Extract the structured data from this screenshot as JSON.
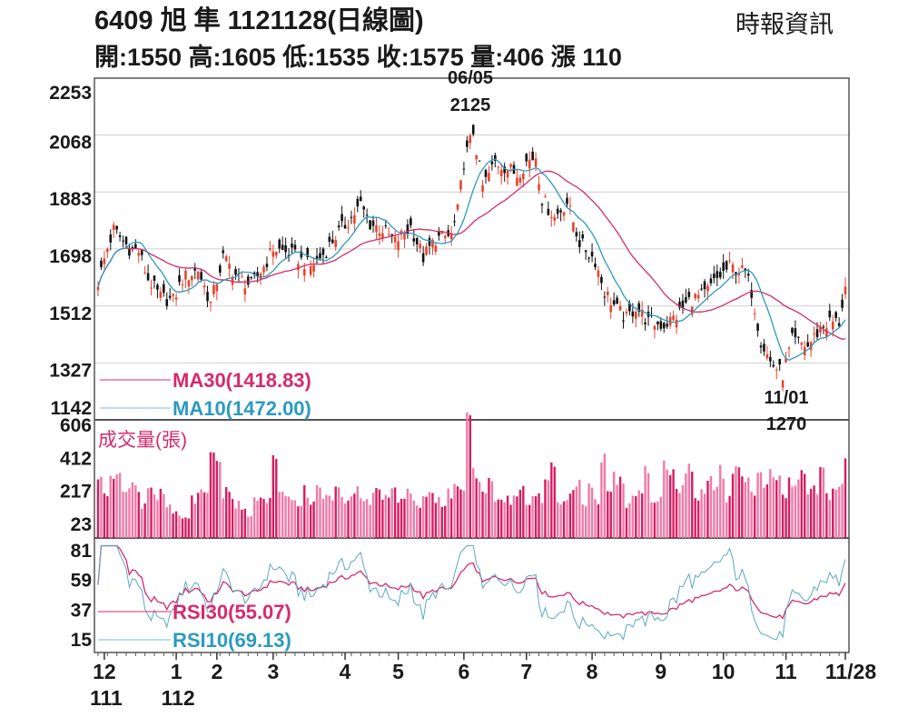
{
  "header": {
    "title": "6409  旭  隼 1121128(日線圖)",
    "source": "時報資訊",
    "ohlc_line": "開:1550 高:1605 低:1535 收:1575 量:406 漲 110"
  },
  "colors": {
    "ma30": "#d62a6c",
    "ma10": "#2a9bc0",
    "up": "#e8432c",
    "down": "#111111",
    "vol_dark": "#d81b60",
    "vol_light": "#f27aa6",
    "grid": "#cfcfcf"
  },
  "chart_data": [
    {
      "type": "candlestick",
      "title": "6409 旭隼 日線圖",
      "yticks": [
        "2253",
        "2068",
        "1883",
        "1698",
        "1512",
        "1327",
        "1142"
      ],
      "ylim": [
        1142,
        2253
      ],
      "trading_days": 240,
      "close_samples_day_price": [
        [
          0,
          1590
        ],
        [
          3,
          1700
        ],
        [
          5,
          1760
        ],
        [
          10,
          1700
        ],
        [
          13,
          1690
        ],
        [
          16,
          1600
        ],
        [
          20,
          1540
        ],
        [
          24,
          1530
        ],
        [
          27,
          1600
        ],
        [
          32,
          1630
        ],
        [
          36,
          1520
        ],
        [
          40,
          1670
        ],
        [
          45,
          1600
        ],
        [
          49,
          1580
        ],
        [
          53,
          1640
        ],
        [
          56,
          1700
        ],
        [
          62,
          1680
        ],
        [
          68,
          1640
        ],
        [
          72,
          1680
        ],
        [
          76,
          1740
        ],
        [
          81,
          1800
        ],
        [
          84,
          1840
        ],
        [
          87,
          1780
        ],
        [
          91,
          1760
        ],
        [
          95,
          1720
        ],
        [
          100,
          1770
        ],
        [
          104,
          1670
        ],
        [
          108,
          1730
        ],
        [
          113,
          1740
        ],
        [
          115,
          1820
        ],
        [
          117,
          1980
        ],
        [
          120,
          2080
        ],
        [
          123,
          1900
        ],
        [
          127,
          1980
        ],
        [
          131,
          1960
        ],
        [
          134,
          1940
        ],
        [
          137,
          1980
        ],
        [
          140,
          2000
        ],
        [
          142,
          1860
        ],
        [
          146,
          1800
        ],
        [
          150,
          1850
        ],
        [
          154,
          1720
        ],
        [
          159,
          1660
        ],
        [
          162,
          1560
        ],
        [
          166,
          1500
        ],
        [
          169,
          1470
        ],
        [
          172,
          1510
        ],
        [
          176,
          1460
        ],
        [
          181,
          1450
        ],
        [
          185,
          1480
        ],
        [
          189,
          1530
        ],
        [
          194,
          1550
        ],
        [
          198,
          1600
        ],
        [
          202,
          1640
        ],
        [
          207,
          1620
        ],
        [
          209,
          1560
        ],
        [
          212,
          1400
        ],
        [
          215,
          1330
        ],
        [
          219,
          1290
        ],
        [
          222,
          1400
        ],
        [
          227,
          1380
        ],
        [
          231,
          1440
        ],
        [
          234,
          1460
        ],
        [
          237,
          1460
        ],
        [
          239,
          1575
        ]
      ],
      "last_candle": {
        "open": 1550,
        "high": 1605,
        "low": 1535,
        "close": 1575
      },
      "annotations": [
        {
          "date": "06/05",
          "value": "2125",
          "day": 120
        },
        {
          "date": "11/01",
          "value": "1270",
          "day": 219
        }
      ],
      "legend": {
        "ma30": "MA30(1418.83)",
        "ma10": "MA10(1472.00)"
      }
    },
    {
      "type": "bar",
      "title": "成交量(張)",
      "yticks": [
        "606",
        "412",
        "217",
        "23"
      ],
      "ylim": [
        23,
        606
      ],
      "values": [
        250,
        220,
        300,
        290,
        200,
        270,
        240,
        120,
        220,
        170,
        200,
        130,
        100,
        60,
        50,
        170,
        190,
        200,
        420,
        330,
        210,
        180,
        130,
        100,
        60,
        170,
        200,
        150,
        440,
        260,
        180,
        170,
        150,
        210,
        150,
        250,
        200,
        160,
        270,
        150,
        180,
        240,
        180,
        150,
        200,
        190,
        160,
        270,
        150,
        200,
        170,
        130,
        200,
        190,
        160,
        120,
        210,
        230,
        190,
        606,
        310,
        280,
        200,
        250,
        180,
        140,
        160,
        220,
        270,
        130,
        190,
        170,
        250,
        320,
        130,
        160,
        200,
        270,
        140,
        230,
        150,
        420,
        180,
        300,
        250,
        130,
        210,
        240,
        360,
        150,
        190,
        330,
        350,
        210,
        290,
        360,
        170,
        230,
        330,
        240,
        330,
        180,
        300,
        360,
        260,
        180,
        350,
        220,
        330,
        310,
        190,
        270,
        240,
        310,
        200,
        230,
        300,
        190,
        260,
        220,
        406
      ]
    },
    {
      "type": "line",
      "title": "RSI",
      "yticks": [
        "81",
        "59",
        "37",
        "15"
      ],
      "ylim": [
        15,
        81
      ],
      "legend": {
        "rsi30": "RSI30(55.07)",
        "rsi10": "RSI10(69.13)"
      }
    }
  ],
  "xaxis": {
    "months": [
      {
        "label": "12",
        "day": 2
      },
      {
        "label": "1",
        "day": 25
      },
      {
        "label": "2",
        "day": 38
      },
      {
        "label": "3",
        "day": 56
      },
      {
        "label": "4",
        "day": 79
      },
      {
        "label": "5",
        "day": 96
      },
      {
        "label": "6",
        "day": 117
      },
      {
        "label": "7",
        "day": 137
      },
      {
        "label": "8",
        "day": 158
      },
      {
        "label": "9",
        "day": 180
      },
      {
        "label": "10",
        "day": 200
      },
      {
        "label": "11",
        "day": 220
      },
      {
        "label": "11/28",
        "day": 239
      }
    ],
    "years": [
      {
        "label": "111",
        "day": 2
      },
      {
        "label": "112",
        "day": 25
      }
    ]
  }
}
